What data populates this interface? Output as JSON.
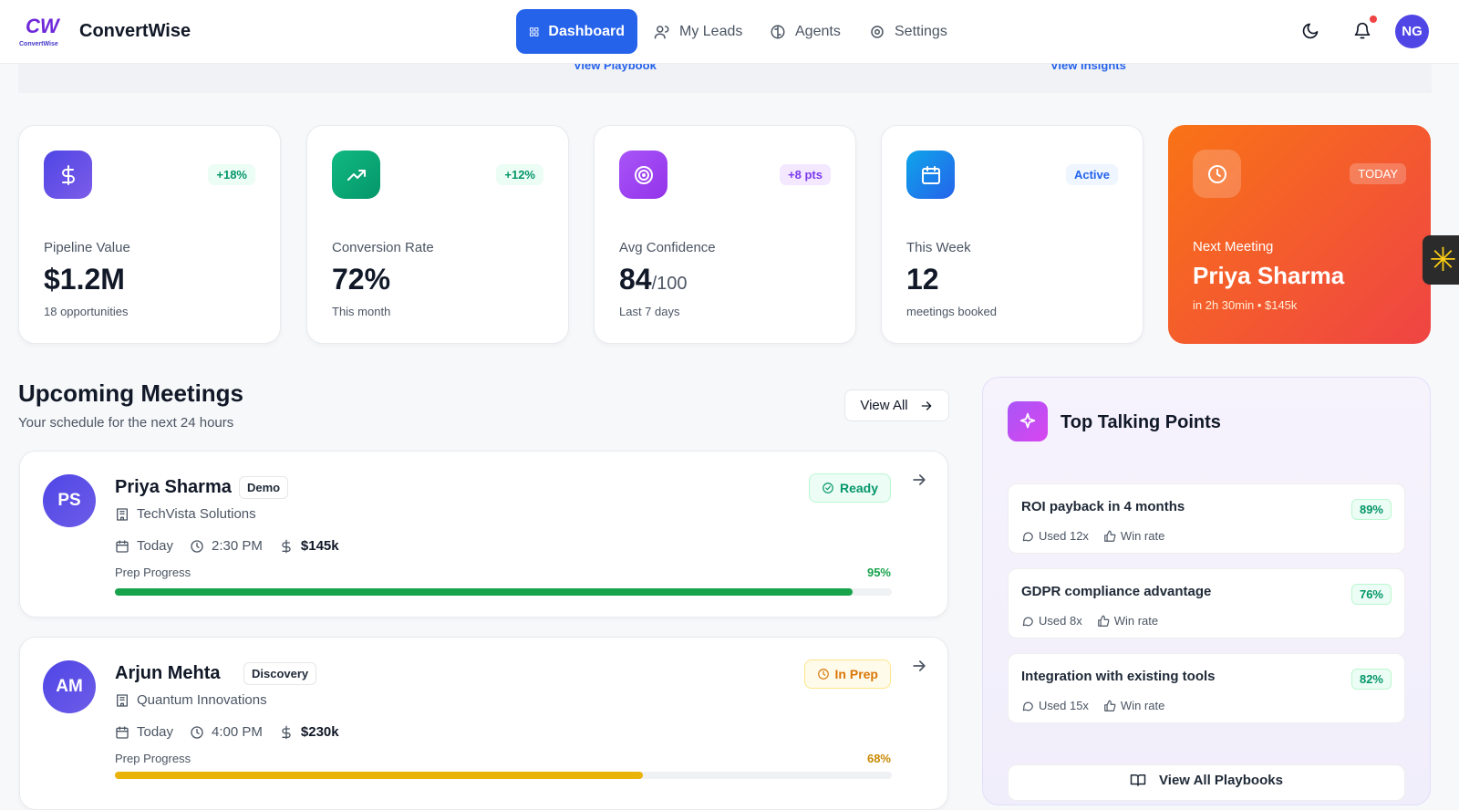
{
  "brand": {
    "logo_mark": "CW",
    "logo_text": "ConvertWise",
    "name": "ConvertWise"
  },
  "nav": {
    "items": [
      "Dashboard",
      "My Leads",
      "Agents",
      "Settings"
    ],
    "avatar": "NG"
  },
  "banner_links": [
    "View Playbook",
    "View Insights"
  ],
  "stats": [
    {
      "badge": "+18%",
      "label": "Pipeline Value",
      "value": "$1.2M",
      "note": "18 opportunities"
    },
    {
      "badge": "+12%",
      "label": "Conversion Rate",
      "value": "72%",
      "note": "This month"
    },
    {
      "badge": "+8 pts",
      "label": "Avg Confidence",
      "value": "84",
      "value_suffix": "/100",
      "note": "Last 7 days"
    },
    {
      "badge": "Active",
      "label": "This Week",
      "value": "12",
      "note": "meetings booked"
    }
  ],
  "next_meeting": {
    "badge": "TODAY",
    "label": "Next Meeting",
    "name": "Priya Sharma",
    "note": "in 2h 30min • $145k"
  },
  "meetings": {
    "title": "Upcoming Meetings",
    "subtitle": "Your schedule for the next 24 hours",
    "view_all": "View All",
    "items": [
      {
        "initials": "PS",
        "name": "Priya Sharma",
        "tag": "Demo",
        "company": "TechVista Solutions",
        "day": "Today",
        "time": "2:30 PM",
        "amount": "$145k",
        "status": "Ready",
        "progress_label": "Prep Progress",
        "progress": {
          "value": 95,
          "label": "95%"
        }
      },
      {
        "initials": "AM",
        "name": "Arjun Mehta",
        "tag": "Discovery",
        "company": "Quantum Innovations",
        "day": "Today",
        "time": "4:00 PM",
        "amount": "$230k",
        "status": "In Prep",
        "progress_label": "Prep Progress",
        "progress": {
          "value": 68,
          "label": "68%"
        }
      }
    ]
  },
  "talking_points": {
    "title": "Top Talking Points",
    "items": [
      {
        "text": "ROI payback in 4 months",
        "pct": "89%",
        "used": "Used 12x",
        "win": "Win rate"
      },
      {
        "text": "GDPR compliance advantage",
        "pct": "76%",
        "used": "Used 8x",
        "win": "Win rate"
      },
      {
        "text": "Integration with existing tools",
        "pct": "82%",
        "used": "Used 15x",
        "win": "Win rate"
      }
    ],
    "footer": "View All Playbooks"
  }
}
